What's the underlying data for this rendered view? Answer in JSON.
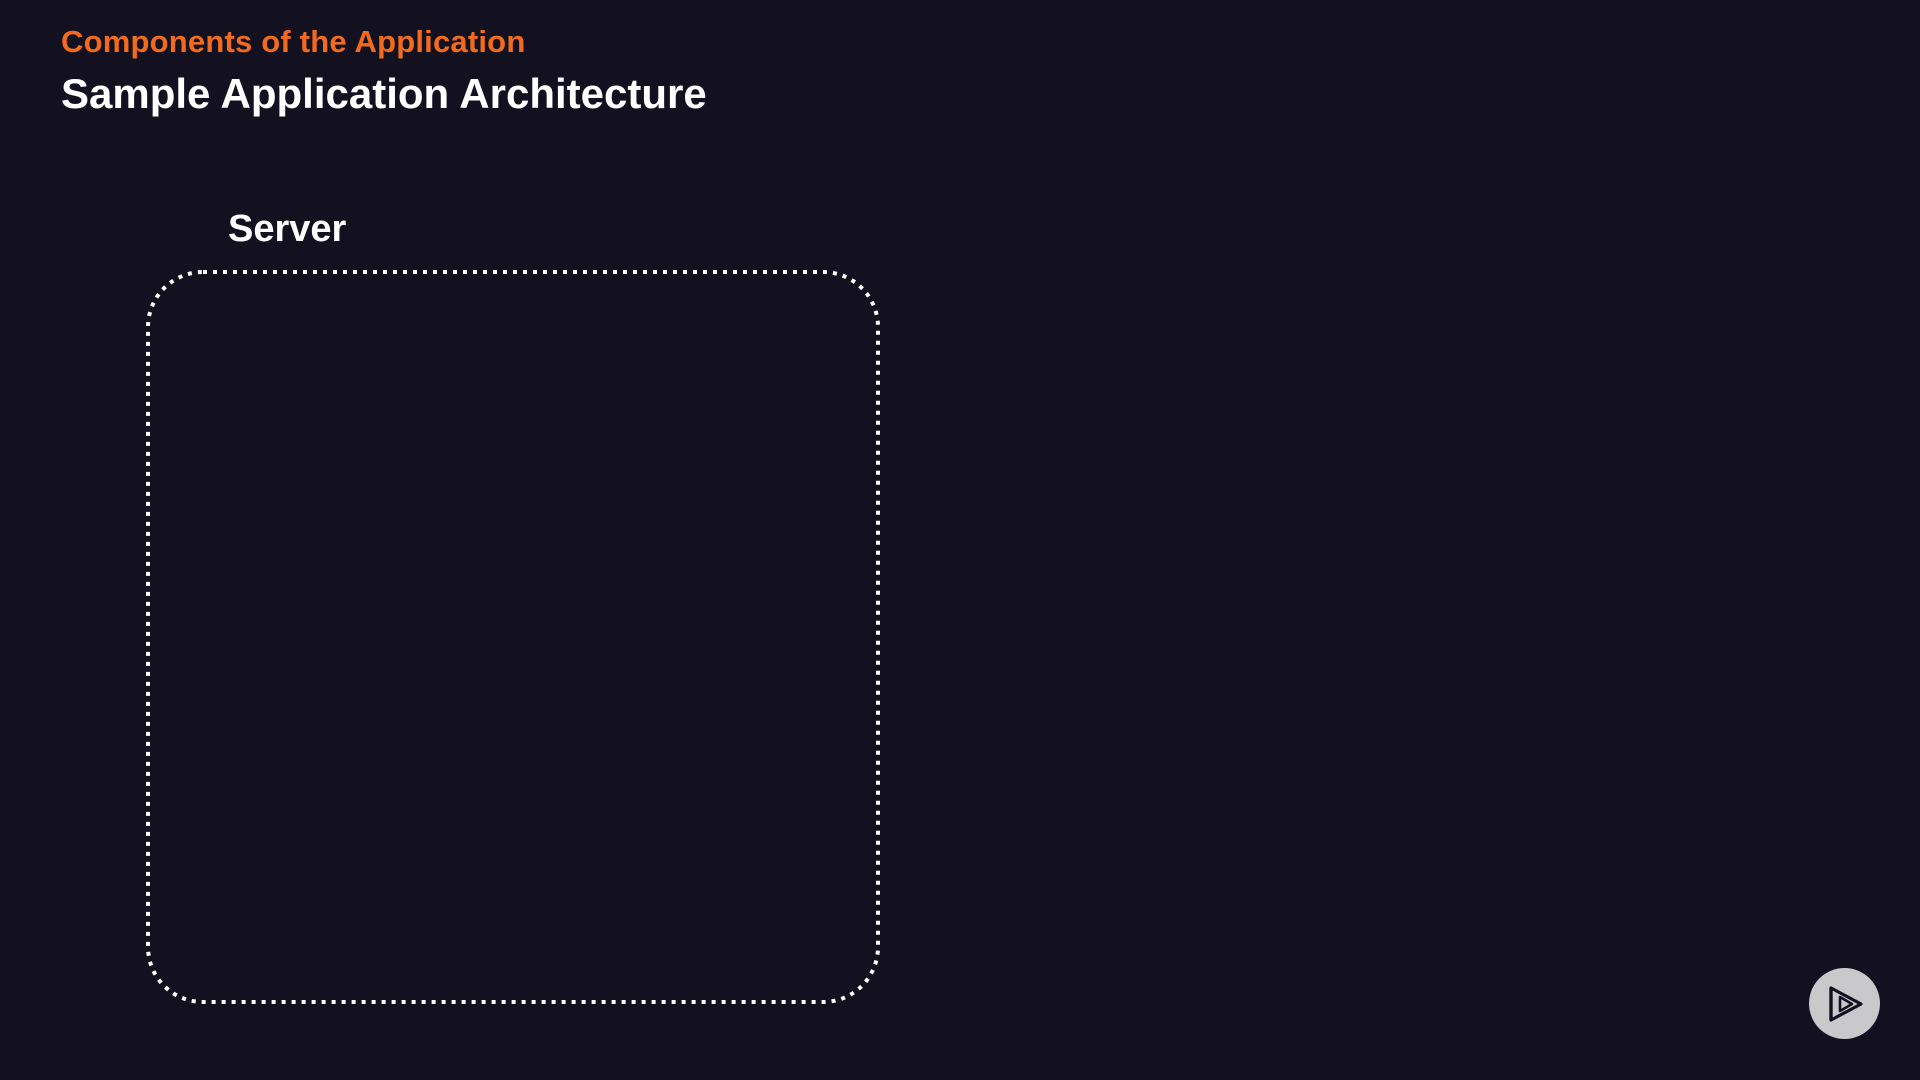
{
  "slide": {
    "section_label": "Components of the Application",
    "title": "Sample Application Architecture"
  },
  "diagram": {
    "server_label": "Server"
  },
  "colors": {
    "background": "#13111f",
    "accent": "#f26b1d",
    "text": "#ffffff",
    "box_border": "#ffffff",
    "logo_badge": "#c9c9cc"
  },
  "icons": {
    "player_logo": "play-logo-icon"
  }
}
